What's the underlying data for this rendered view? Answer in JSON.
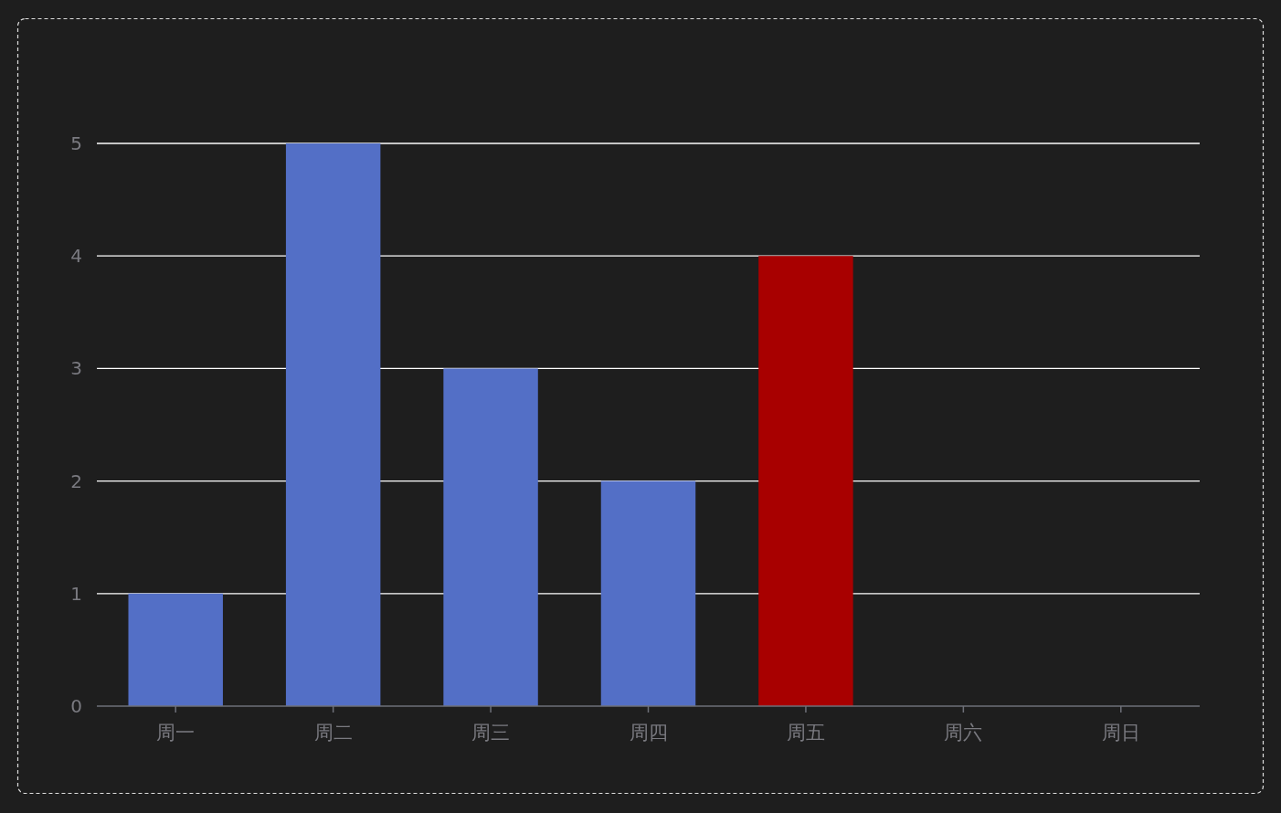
{
  "chart_data": {
    "type": "bar",
    "categories": [
      "周一",
      "周二",
      "周三",
      "周四",
      "周五",
      "周六",
      "周日"
    ],
    "values": [
      1,
      5,
      3,
      2,
      4,
      null,
      null
    ],
    "colors": [
      "#536fc6",
      "#536fc6",
      "#536fc6",
      "#536fc6",
      "#a80000",
      null,
      null
    ],
    "ylim": [
      0,
      5
    ],
    "yticks": [
      0,
      1,
      2,
      3,
      4,
      5
    ],
    "grid": "y"
  }
}
